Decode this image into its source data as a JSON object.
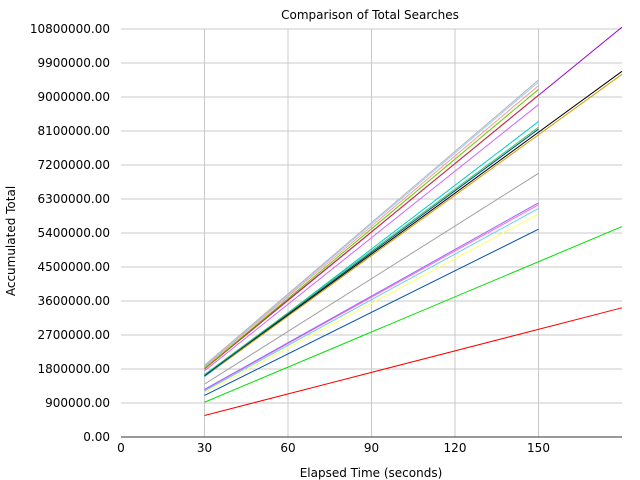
{
  "chart_data": {
    "type": "line",
    "title": "Comparison of Total Searches",
    "xlabel": "Elapsed Time (seconds)",
    "ylabel": "Accumulated Total",
    "xlim": [
      0,
      180
    ],
    "ylim": [
      0,
      10800000
    ],
    "xticks": [
      0,
      30,
      60,
      90,
      120,
      150
    ],
    "xtick_labels": [
      "0",
      "30",
      "60",
      "90",
      "120",
      "150"
    ],
    "yticks": [
      0,
      900000,
      1800000,
      2700000,
      3600000,
      4500000,
      5400000,
      6300000,
      7200000,
      8100000,
      9000000,
      9900000,
      10800000
    ],
    "ytick_labels": [
      "0.00",
      "900000.00",
      "1800000.00",
      "2700000.00",
      "3600000.00",
      "4500000.00",
      "5400000.00",
      "6300000.00",
      "7200000.00",
      "8100000.00",
      "9000000.00",
      "9900000.00",
      "10800000.00"
    ],
    "grid": true,
    "legend": "none",
    "series": [
      {
        "color": "#ff0000",
        "points": [
          [
            30,
            570000
          ],
          [
            180,
            3420000
          ]
        ]
      },
      {
        "color": "#00e000",
        "points": [
          [
            30,
            920000
          ],
          [
            180,
            5570000
          ]
        ]
      },
      {
        "color": "#9900cc",
        "points": [
          [
            30,
            1820000
          ],
          [
            180,
            10850000
          ]
        ]
      },
      {
        "color": "#000000",
        "points": [
          [
            30,
            1620000
          ],
          [
            180,
            9680000
          ]
        ]
      },
      {
        "color": "#d4a000",
        "points": [
          [
            30,
            1600000
          ],
          [
            180,
            9600000
          ]
        ]
      },
      {
        "color": "#0050b0",
        "points": [
          [
            30,
            1100000
          ],
          [
            150,
            5500000
          ]
        ]
      },
      {
        "color": "#ffff66",
        "points": [
          [
            30,
            1180000
          ],
          [
            150,
            5900000
          ]
        ]
      },
      {
        "color": "#66ccff",
        "points": [
          [
            30,
            1220000
          ],
          [
            150,
            6050000
          ]
        ]
      },
      {
        "color": "#ff66cc",
        "points": [
          [
            30,
            1250000
          ],
          [
            150,
            6150000
          ]
        ]
      },
      {
        "color": "#9966ff",
        "points": [
          [
            30,
            1260000
          ],
          [
            150,
            6200000
          ]
        ]
      },
      {
        "color": "#a0a0a0",
        "points": [
          [
            30,
            1400000
          ],
          [
            150,
            6980000
          ]
        ]
      },
      {
        "color": "#00cccc",
        "points": [
          [
            30,
            1600000
          ],
          [
            150,
            8350000
          ]
        ]
      },
      {
        "color": "#33cc66",
        "points": [
          [
            30,
            1650000
          ],
          [
            150,
            8200000
          ]
        ]
      },
      {
        "color": "#004080",
        "points": [
          [
            30,
            1620000
          ],
          [
            150,
            8150000
          ]
        ]
      },
      {
        "color": "#cc3333",
        "points": [
          [
            30,
            1800000
          ],
          [
            150,
            9050000
          ]
        ]
      },
      {
        "color": "#cc66ff",
        "points": [
          [
            30,
            1750000
          ],
          [
            150,
            8800000
          ]
        ]
      },
      {
        "color": "#66cc00",
        "points": [
          [
            30,
            1820000
          ],
          [
            150,
            9200000
          ]
        ]
      },
      {
        "color": "#ff9999",
        "points": [
          [
            30,
            1860000
          ],
          [
            150,
            9300000
          ]
        ]
      },
      {
        "color": "#99ccff",
        "points": [
          [
            30,
            1880000
          ],
          [
            150,
            9400000
          ]
        ]
      },
      {
        "color": "#b8b8b8",
        "points": [
          [
            30,
            1900000
          ],
          [
            150,
            9450000
          ]
        ]
      }
    ]
  }
}
